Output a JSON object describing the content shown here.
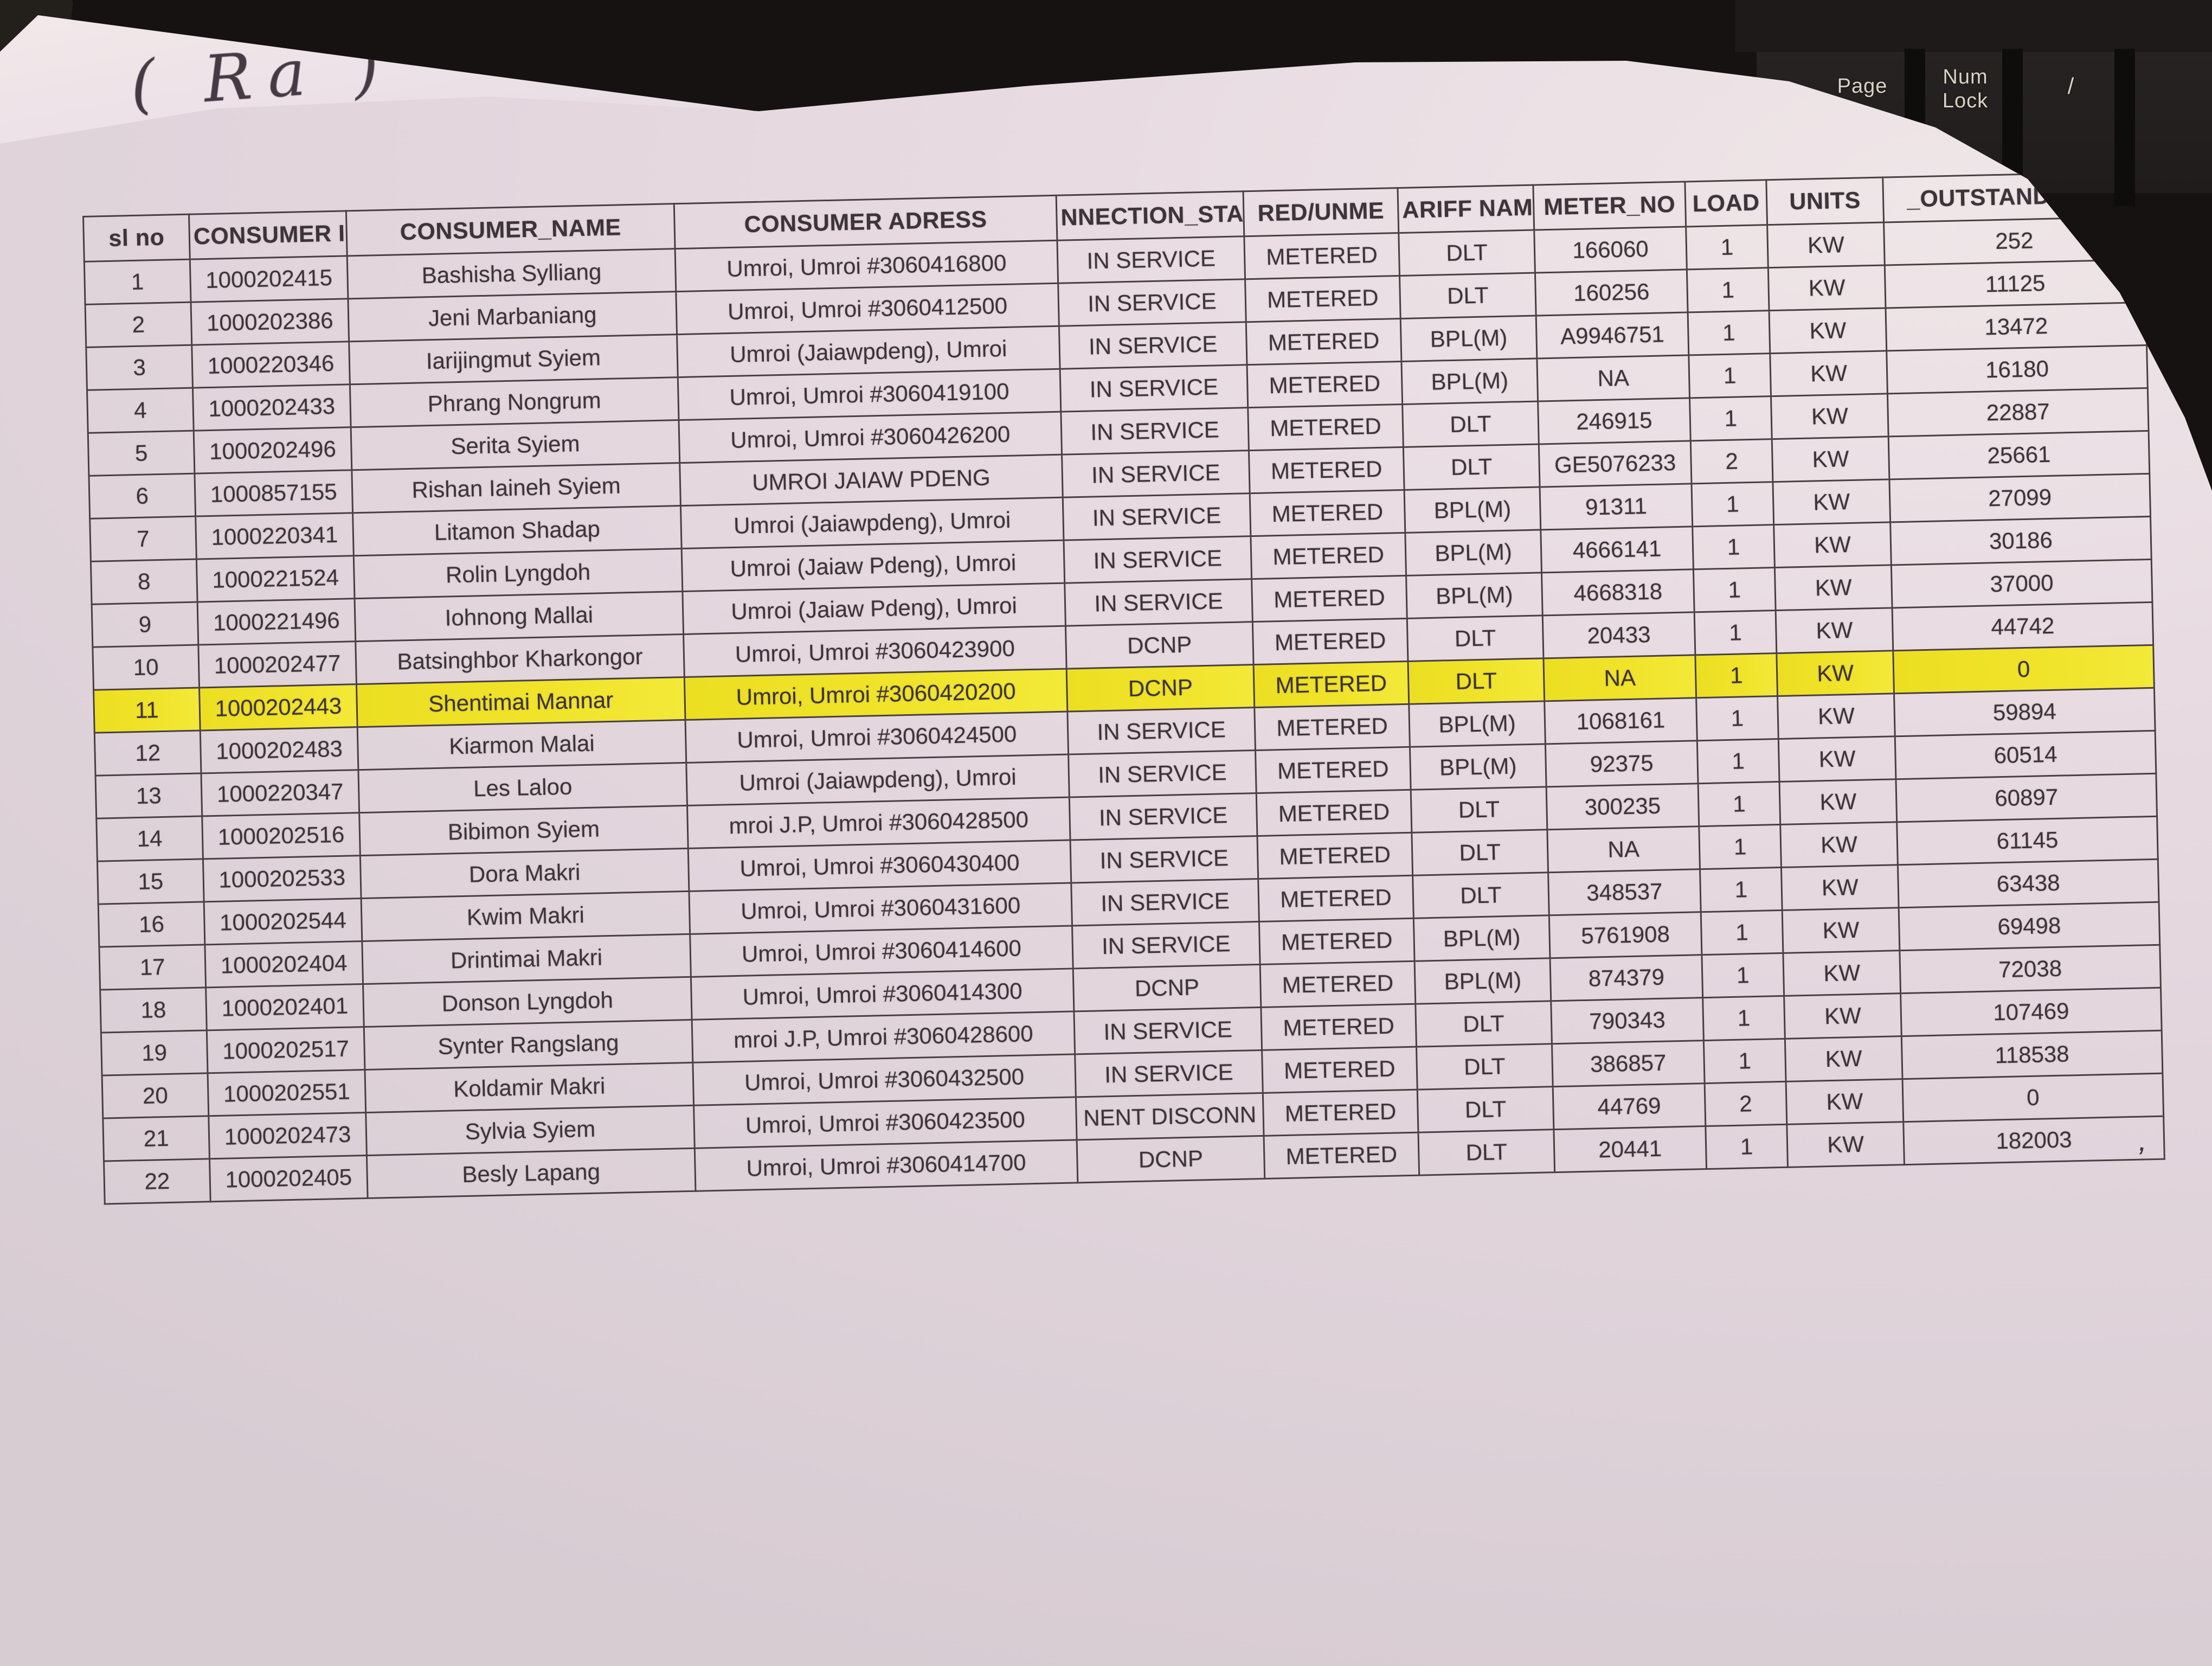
{
  "scene": {
    "keyboard": {
      "keys": [
        "Page",
        "Num Lock",
        "/"
      ]
    },
    "handwritten_note": "( Ra )",
    "pen_mark": ","
  },
  "table": {
    "headers": [
      "sl no",
      "CONSUMER ID",
      "CONSUMER_NAME",
      "CONSUMER ADRESS",
      "NNECTION_STA",
      "RED/UNME",
      "ARIFF NAM",
      "METER_NO",
      "LOAD",
      "UNITS",
      "_OUTSTANDING_T"
    ],
    "highlighted_row_sl_no": 11,
    "highlight_color": "#f0e32a",
    "rows": [
      [
        1,
        "1000202415",
        "Bashisha Sylliang",
        "Umroi, Umroi #3060416800",
        "IN SERVICE",
        "METERED",
        "DLT",
        "166060",
        "1",
        "KW",
        "252"
      ],
      [
        2,
        "1000202386",
        "Jeni Marbaniang",
        "Umroi, Umroi #3060412500",
        "IN SERVICE",
        "METERED",
        "DLT",
        "160256",
        "1",
        "KW",
        "11125"
      ],
      [
        3,
        "1000220346",
        "Iarijingmut Syiem",
        "Umroi (Jaiawpdeng), Umroi",
        "IN SERVICE",
        "METERED",
        "BPL(M)",
        "A9946751",
        "1",
        "KW",
        "13472"
      ],
      [
        4,
        "1000202433",
        "Phrang Nongrum",
        "Umroi, Umroi #3060419100",
        "IN SERVICE",
        "METERED",
        "BPL(M)",
        "NA",
        "1",
        "KW",
        "16180"
      ],
      [
        5,
        "1000202496",
        "Serita Syiem",
        "Umroi, Umroi #3060426200",
        "IN SERVICE",
        "METERED",
        "DLT",
        "246915",
        "1",
        "KW",
        "22887"
      ],
      [
        6,
        "1000857155",
        "Rishan Iaineh Syiem",
        "UMROI JAIAW PDENG",
        "IN SERVICE",
        "METERED",
        "DLT",
        "GE5076233",
        "2",
        "KW",
        "25661"
      ],
      [
        7,
        "1000220341",
        "Litamon Shadap",
        "Umroi (Jaiawpdeng), Umroi",
        "IN SERVICE",
        "METERED",
        "BPL(M)",
        "91311",
        "1",
        "KW",
        "27099"
      ],
      [
        8,
        "1000221524",
        "Rolin Lyngdoh",
        "Umroi (Jaiaw Pdeng), Umroi",
        "IN SERVICE",
        "METERED",
        "BPL(M)",
        "4666141",
        "1",
        "KW",
        "30186"
      ],
      [
        9,
        "1000221496",
        "Iohnong Mallai",
        "Umroi (Jaiaw Pdeng), Umroi",
        "IN SERVICE",
        "METERED",
        "BPL(M)",
        "4668318",
        "1",
        "KW",
        "37000"
      ],
      [
        10,
        "1000202477",
        "Batsinghbor Kharkongor",
        "Umroi, Umroi #3060423900",
        "DCNP",
        "METERED",
        "DLT",
        "20433",
        "1",
        "KW",
        "44742"
      ],
      [
        11,
        "1000202443",
        "Shentimai Mannar",
        "Umroi, Umroi #3060420200",
        "DCNP",
        "METERED",
        "DLT",
        "NA",
        "1",
        "KW",
        "0"
      ],
      [
        12,
        "1000202483",
        "Kiarmon Malai",
        "Umroi, Umroi #3060424500",
        "IN SERVICE",
        "METERED",
        "BPL(M)",
        "1068161",
        "1",
        "KW",
        "59894"
      ],
      [
        13,
        "1000220347",
        "Les Laloo",
        "Umroi (Jaiawpdeng), Umroi",
        "IN SERVICE",
        "METERED",
        "BPL(M)",
        "92375",
        "1",
        "KW",
        "60514"
      ],
      [
        14,
        "1000202516",
        "Bibimon Syiem",
        "mroi J.P, Umroi #3060428500",
        "IN SERVICE",
        "METERED",
        "DLT",
        "300235",
        "1",
        "KW",
        "60897"
      ],
      [
        15,
        "1000202533",
        "Dora Makri",
        "Umroi, Umroi #3060430400",
        "IN SERVICE",
        "METERED",
        "DLT",
        "NA",
        "1",
        "KW",
        "61145"
      ],
      [
        16,
        "1000202544",
        "Kwim Makri",
        "Umroi, Umroi #3060431600",
        "IN SERVICE",
        "METERED",
        "DLT",
        "348537",
        "1",
        "KW",
        "63438"
      ],
      [
        17,
        "1000202404",
        "Drintimai Makri",
        "Umroi, Umroi #3060414600",
        "IN SERVICE",
        "METERED",
        "BPL(M)",
        "5761908",
        "1",
        "KW",
        "69498"
      ],
      [
        18,
        "1000202401",
        "Donson Lyngdoh",
        "Umroi, Umroi #3060414300",
        "DCNP",
        "METERED",
        "BPL(M)",
        "874379",
        "1",
        "KW",
        "72038"
      ],
      [
        19,
        "1000202517",
        "Synter Rangslang",
        "mroi J.P, Umroi #3060428600",
        "IN SERVICE",
        "METERED",
        "DLT",
        "790343",
        "1",
        "KW",
        "107469"
      ],
      [
        20,
        "1000202551",
        "Koldamir Makri",
        "Umroi, Umroi #3060432500",
        "IN SERVICE",
        "METERED",
        "DLT",
        "386857",
        "1",
        "KW",
        "118538"
      ],
      [
        21,
        "1000202473",
        "Sylvia Syiem",
        "Umroi, Umroi #3060423500",
        "NENT DISCONN",
        "METERED",
        "DLT",
        "44769",
        "2",
        "KW",
        "0"
      ],
      [
        22,
        "1000202405",
        "Besly Lapang",
        "Umroi, Umroi #3060414700",
        "DCNP",
        "METERED",
        "DLT",
        "20441",
        "1",
        "KW",
        "182003"
      ]
    ]
  }
}
